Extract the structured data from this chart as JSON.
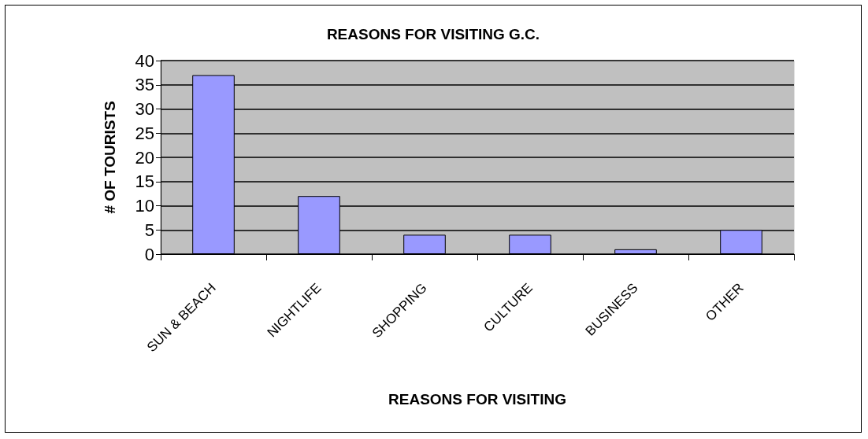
{
  "chart_data": {
    "type": "bar",
    "title": "REASONS FOR VISITING G.C.",
    "xlabel": "REASONS FOR VISITING",
    "ylabel": "# OF TOURISTS",
    "categories": [
      "SUN & BEACH",
      "NIGHTLIFE",
      "SHOPPING",
      "CULTURE",
      "BUSINESS",
      "OTHER"
    ],
    "values": [
      37,
      12,
      4,
      4,
      1,
      5
    ],
    "color": "#9999ff",
    "ylim": [
      0,
      40
    ],
    "yticks": [
      0,
      5,
      10,
      15,
      20,
      25,
      30,
      35,
      40
    ],
    "grid": "y"
  }
}
